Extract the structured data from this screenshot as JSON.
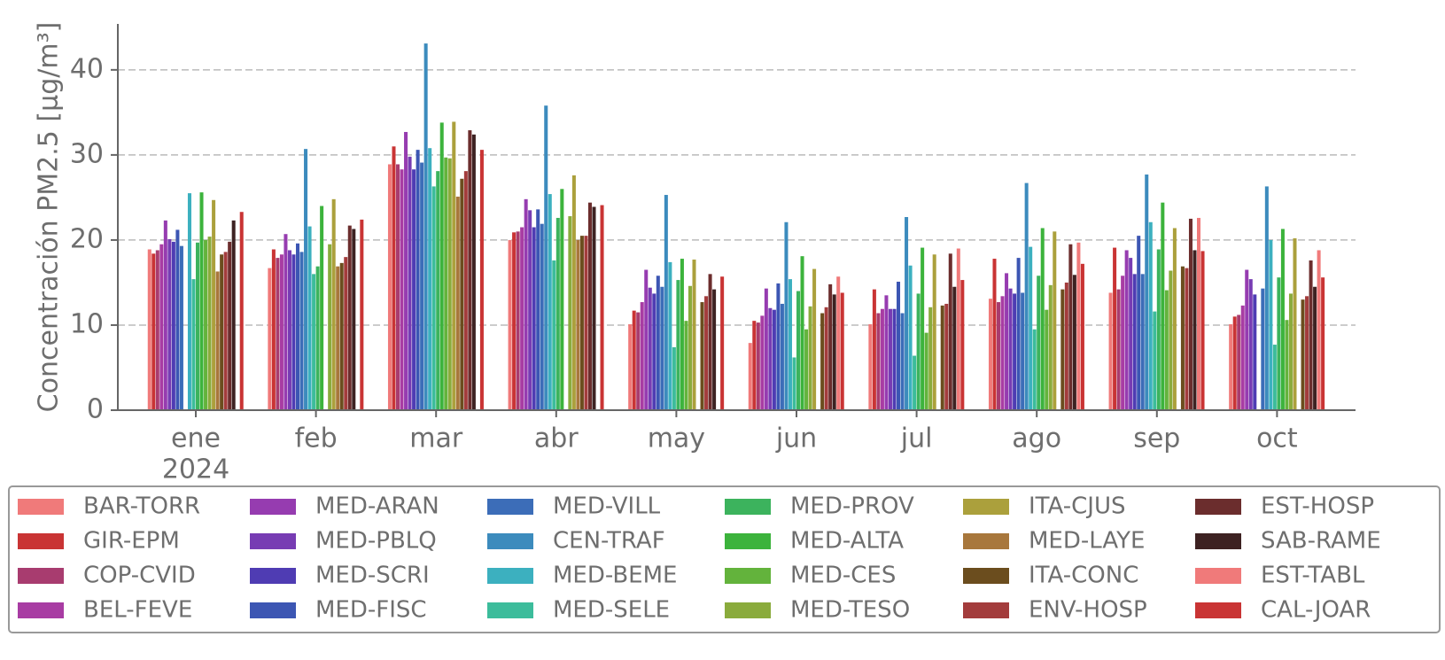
{
  "chart_data": {
    "type": "bar",
    "y_label": "Concentración PM2.5 [μg/m³]",
    "categories": [
      "ene",
      "feb",
      "mar",
      "abr",
      "may",
      "jun",
      "jul",
      "ago",
      "sep",
      "oct"
    ],
    "year_label": "2024",
    "ylim": [
      0,
      45.4
    ],
    "yticks": [
      0,
      10,
      20,
      30,
      40
    ],
    "grid": true,
    "legend": "bottom",
    "series": [
      {
        "name": "BAR-TORR",
        "color": "#f07a7a",
        "values": [
          18.9,
          16.7,
          28.9,
          20.0,
          10.1,
          7.9,
          10.1,
          13.1,
          13.8,
          10.1
        ]
      },
      {
        "name": "GIR-EPM",
        "color": "#c93434",
        "values": [
          18.4,
          18.9,
          31.0,
          20.9,
          11.7,
          10.5,
          14.2,
          17.8,
          19.1,
          11.0
        ]
      },
      {
        "name": "COP-CVID",
        "color": "#a83c6f",
        "values": [
          18.8,
          17.9,
          28.9,
          21.0,
          11.5,
          10.3,
          11.4,
          12.7,
          14.2,
          11.2
        ]
      },
      {
        "name": "BEL-FEVE",
        "color": "#a83ca3",
        "values": [
          19.5,
          18.3,
          28.3,
          21.5,
          12.7,
          11.1,
          11.9,
          13.4,
          15.8,
          12.3
        ]
      },
      {
        "name": "MED-ARAN",
        "color": "#963cb0",
        "values": [
          22.3,
          20.7,
          32.7,
          24.8,
          16.5,
          14.3,
          13.5,
          16.1,
          18.8,
          16.5
        ]
      },
      {
        "name": "MED-PBLQ",
        "color": "#773cb3",
        "values": [
          20.1,
          18.8,
          29.8,
          23.5,
          14.4,
          12.0,
          11.9,
          14.3,
          17.9,
          15.4
        ]
      },
      {
        "name": "MED-SCRI",
        "color": "#4f3cb3",
        "values": [
          19.8,
          18.3,
          28.3,
          21.5,
          13.7,
          11.8,
          11.9,
          13.7,
          16.0,
          13.6
        ]
      },
      {
        "name": "MED-FISC",
        "color": "#3c56b3",
        "values": [
          21.2,
          19.6,
          30.6,
          23.6,
          15.8,
          14.9,
          15.1,
          17.9,
          20.5,
          null
        ]
      },
      {
        "name": "MED-VILL",
        "color": "#3c6db8",
        "values": [
          19.3,
          18.6,
          29.1,
          21.9,
          14.5,
          12.5,
          11.4,
          13.8,
          16.0,
          14.3
        ]
      },
      {
        "name": "CEN-TRAF",
        "color": "#3c8bbd",
        "values": [
          null,
          30.7,
          43.1,
          35.8,
          25.3,
          22.1,
          22.7,
          26.7,
          27.7,
          26.3
        ]
      },
      {
        "name": "MED-BEME",
        "color": "#3cb0bf",
        "values": [
          25.5,
          21.6,
          30.8,
          25.4,
          17.4,
          15.4,
          17.0,
          19.2,
          22.1,
          20.0
        ]
      },
      {
        "name": "MED-SELE",
        "color": "#3cbc9b",
        "values": [
          15.4,
          16.0,
          26.3,
          17.6,
          7.4,
          6.2,
          6.4,
          9.5,
          11.6,
          7.7
        ]
      },
      {
        "name": "MED-PROV",
        "color": "#3cb35d",
        "values": [
          19.7,
          16.9,
          28.1,
          22.6,
          15.3,
          14.0,
          13.7,
          15.8,
          18.9,
          15.6
        ]
      },
      {
        "name": "MED-ALTA",
        "color": "#3cb33c",
        "values": [
          25.6,
          24.0,
          33.8,
          26.0,
          17.8,
          18.1,
          19.1,
          21.4,
          24.4,
          21.3
        ]
      },
      {
        "name": "MED-CES",
        "color": "#63b33c",
        "values": [
          20.0,
          null,
          29.7,
          null,
          10.5,
          9.5,
          9.1,
          11.8,
          14.1,
          10.6
        ]
      },
      {
        "name": "MED-TESO",
        "color": "#8aab3c",
        "values": [
          20.4,
          19.5,
          29.6,
          22.8,
          14.6,
          12.2,
          12.1,
          14.7,
          16.4,
          13.7
        ]
      },
      {
        "name": "ITA-CJUS",
        "color": "#aba03c",
        "values": [
          24.7,
          24.8,
          33.9,
          27.6,
          17.7,
          16.6,
          18.3,
          21.0,
          21.4,
          20.2
        ]
      },
      {
        "name": "MED-LAYE",
        "color": "#a8773c",
        "values": [
          16.3,
          16.9,
          25.1,
          20.0,
          null,
          null,
          null,
          null,
          null,
          null
        ]
      },
      {
        "name": "ITA-CONC",
        "color": "#6b4d1e",
        "values": [
          18.3,
          17.3,
          27.2,
          20.5,
          12.7,
          11.4,
          12.3,
          14.2,
          16.9,
          13.0
        ]
      },
      {
        "name": "ENV-HOSP",
        "color": "#a33c3c",
        "values": [
          18.6,
          18.0,
          28.1,
          20.5,
          13.4,
          12.1,
          12.5,
          15.0,
          16.7,
          13.4
        ]
      },
      {
        "name": "EST-HOSP",
        "color": "#6b2d2d",
        "values": [
          19.8,
          21.7,
          32.9,
          24.4,
          16.0,
          14.8,
          18.4,
          19.5,
          22.5,
          17.6
        ]
      },
      {
        "name": "SAB-RAME",
        "color": "#3d2222",
        "values": [
          22.3,
          21.3,
          32.4,
          23.9,
          14.2,
          13.6,
          14.5,
          15.9,
          18.8,
          14.5
        ]
      },
      {
        "name": "EST-TABL",
        "color": "#f07a7a",
        "values": [
          null,
          null,
          null,
          null,
          null,
          15.7,
          19.0,
          19.7,
          22.6,
          18.8
        ]
      },
      {
        "name": "CAL-JOAR",
        "color": "#c93434",
        "values": [
          23.3,
          22.4,
          30.6,
          24.1,
          15.7,
          13.8,
          15.3,
          17.2,
          18.7,
          15.6
        ]
      }
    ]
  }
}
